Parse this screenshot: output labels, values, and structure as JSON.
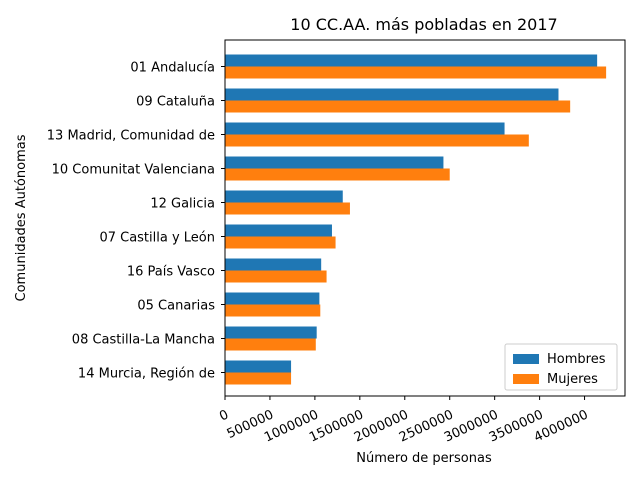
{
  "chart_data": {
    "type": "bar",
    "orientation": "horizontal",
    "title": "10 CC.AA. más pobladas en 2017",
    "xlabel": "Número de personas",
    "ylabel": "Comunidades Autónomas",
    "categories": [
      "01 Andalucía",
      "09 Cataluña",
      "13 Madrid, Comunidad de",
      "10 Comunitat Valenciana",
      "12 Galicia",
      "07 Castilla y León",
      "16 País Vasco",
      "05 Canarias",
      "08 Castilla-La Mancha",
      "14 Murcia, Región de"
    ],
    "series": [
      {
        "name": "Hombres",
        "color": "#1f77b4",
        "values": [
          4140000,
          3710000,
          3110000,
          2430000,
          1310000,
          1190000,
          1070000,
          1050000,
          1020000,
          735000
        ]
      },
      {
        "name": "Mujeres",
        "color": "#ff7f0e",
        "values": [
          4240000,
          3840000,
          3380000,
          2500000,
          1390000,
          1230000,
          1130000,
          1060000,
          1010000,
          735000
        ]
      }
    ],
    "xticks": [
      "0",
      "500000",
      "1000000",
      "1500000",
      "2000000",
      "2500000",
      "3000000",
      "3500000",
      "4000000"
    ],
    "xtick_values": [
      0,
      500000,
      1000000,
      1500000,
      2000000,
      2500000,
      3000000,
      3500000,
      4000000
    ],
    "xlim": [
      0,
      4450000
    ],
    "grid": false,
    "legend_position": "lower-right"
  }
}
